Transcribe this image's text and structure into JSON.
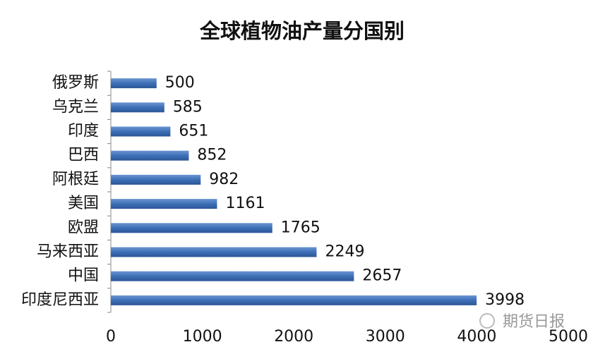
{
  "chart_data": {
    "type": "bar",
    "orientation": "horizontal",
    "title": "全球植物油产量分国别",
    "categories": [
      "俄罗斯",
      "乌克兰",
      "印度",
      "巴西",
      "阿根廷",
      "美国",
      "欧盟",
      "马来西亚",
      "中国",
      "印度尼西亚"
    ],
    "values": [
      500,
      585,
      651,
      852,
      982,
      1161,
      1765,
      2249,
      2657,
      3998
    ],
    "color": "#3d6fb6",
    "xlim": [
      0,
      5000
    ],
    "xticks": [
      0,
      1000,
      2000,
      3000,
      4000,
      5000
    ],
    "grid": false
  },
  "watermark": "期货日报"
}
